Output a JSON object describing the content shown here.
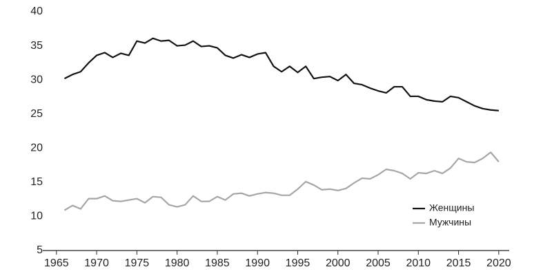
{
  "chart_data": {
    "type": "line",
    "x": [
      1966,
      1967,
      1968,
      1969,
      1970,
      1971,
      1972,
      1973,
      1974,
      1975,
      1976,
      1977,
      1978,
      1979,
      1980,
      1981,
      1982,
      1983,
      1984,
      1985,
      1986,
      1987,
      1988,
      1989,
      1990,
      1991,
      1992,
      1993,
      1994,
      1995,
      1996,
      1997,
      1998,
      1999,
      2000,
      2001,
      2002,
      2003,
      2004,
      2005,
      2006,
      2007,
      2008,
      2009,
      2010,
      2011,
      2012,
      2013,
      2014,
      2015,
      2016,
      2017,
      2018,
      2019,
      2020
    ],
    "series": [
      {
        "name": "Женщины",
        "color": "#111111",
        "values": [
          30.2,
          30.8,
          31.2,
          32.5,
          33.6,
          34.0,
          33.3,
          33.9,
          33.6,
          35.7,
          35.4,
          36.1,
          35.7,
          35.8,
          35.0,
          35.1,
          35.7,
          34.9,
          35.0,
          34.7,
          33.6,
          33.2,
          33.7,
          33.3,
          33.8,
          34.0,
          32.0,
          31.2,
          32.0,
          31.1,
          32.0,
          30.2,
          30.4,
          30.5,
          29.9,
          30.8,
          29.5,
          29.3,
          28.8,
          28.4,
          28.1,
          29.0,
          29.0,
          27.6,
          27.6,
          27.1,
          26.9,
          26.8,
          27.6,
          27.4,
          26.8,
          26.2,
          25.8,
          25.6,
          25.5
        ]
      },
      {
        "name": "Мужчины",
        "color": "#a6a6a6",
        "values": [
          10.9,
          11.6,
          11.1,
          12.6,
          12.6,
          13.0,
          12.3,
          12.2,
          12.4,
          12.6,
          12.0,
          12.9,
          12.8,
          11.7,
          11.4,
          11.7,
          13.0,
          12.2,
          12.2,
          12.9,
          12.4,
          13.3,
          13.4,
          13.0,
          13.3,
          13.5,
          13.4,
          13.1,
          13.1,
          14.0,
          15.1,
          14.6,
          13.9,
          14.0,
          13.8,
          14.1,
          14.9,
          15.6,
          15.5,
          16.1,
          16.9,
          16.7,
          16.3,
          15.5,
          16.4,
          16.3,
          16.7,
          16.3,
          17.1,
          18.5,
          18.0,
          17.9,
          18.5,
          19.4,
          18.0
        ]
      }
    ],
    "xlim": [
      1963.3,
      2021.3
    ],
    "xticks": [
      1965,
      1970,
      1975,
      1980,
      1985,
      1990,
      1995,
      2000,
      2005,
      2010,
      2015,
      2020
    ],
    "ylim": [
      5,
      40
    ],
    "yticks": [
      5,
      10,
      15,
      20,
      25,
      30,
      35,
      40
    ],
    "grid": false,
    "legend": "lower right"
  }
}
